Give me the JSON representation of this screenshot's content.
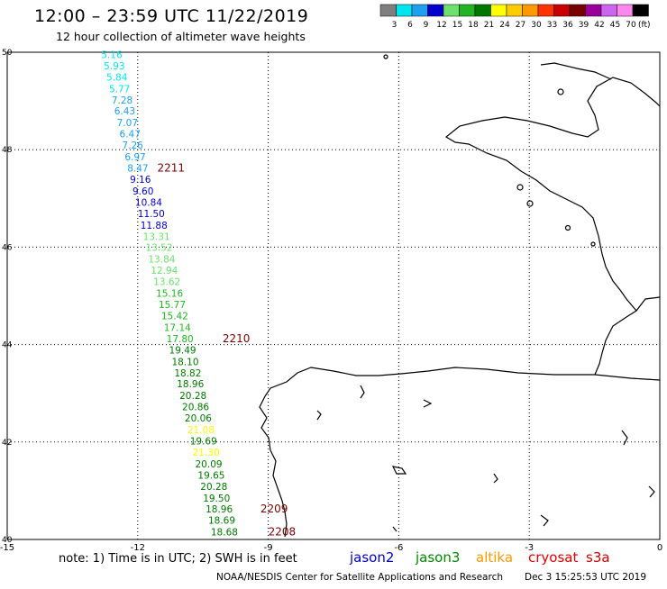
{
  "header": {
    "title": "12:00 – 23:59 UTC 11/22/2019",
    "subtitle": "12 hour collection of altimeter wave heights"
  },
  "scale": {
    "unit": "(ft)",
    "bins": [
      {
        "label": "3",
        "color": "#7f7f7f"
      },
      {
        "label": "6",
        "color": "#00e5ee"
      },
      {
        "label": "9",
        "color": "#1ea0ee"
      },
      {
        "label": "12",
        "color": "#0000cd"
      },
      {
        "label": "15",
        "color": "#6ee06e"
      },
      {
        "label": "18",
        "color": "#22b422"
      },
      {
        "label": "21",
        "color": "#007800"
      },
      {
        "label": "24",
        "color": "#ffff00"
      },
      {
        "label": "27",
        "color": "#ffcc00"
      },
      {
        "label": "30",
        "color": "#ff9900"
      },
      {
        "label": "33",
        "color": "#ff3300"
      },
      {
        "label": "36",
        "color": "#c80000"
      },
      {
        "label": "39",
        "color": "#780000"
      },
      {
        "label": "42",
        "color": "#990099"
      },
      {
        "label": "45",
        "color": "#cc66ee"
      },
      {
        "label": "70",
        "color": "#ff88ee"
      },
      {
        "label": "",
        "color": "#000000"
      }
    ]
  },
  "axes": {
    "x_ticks": [
      "-15",
      "-12",
      "-9",
      "-6",
      "-3",
      "0"
    ],
    "y_ticks": [
      "50",
      "48",
      "46",
      "44",
      "42",
      "40"
    ],
    "lon_range": [
      -15,
      0
    ],
    "lat_range": [
      40,
      50
    ]
  },
  "chart_data": {
    "type": "scatter",
    "series": [
      {
        "mission": "jason3",
        "values": [
          {
            "lat": 49.88,
            "lon": -12.84,
            "swh": 5.16
          },
          {
            "lat": 49.65,
            "lon": -12.78,
            "swh": 5.93
          },
          {
            "lat": 49.42,
            "lon": -12.72,
            "swh": 5.84
          },
          {
            "lat": 49.18,
            "lon": -12.66,
            "swh": 5.77
          },
          {
            "lat": 48.95,
            "lon": -12.6,
            "swh": 7.28
          },
          {
            "lat": 48.72,
            "lon": -12.54,
            "swh": 6.43
          },
          {
            "lat": 48.48,
            "lon": -12.48,
            "swh": 7.07
          },
          {
            "lat": 48.25,
            "lon": -12.42,
            "swh": 6.47
          },
          {
            "lat": 48.02,
            "lon": -12.36,
            "swh": 7.26
          },
          {
            "lat": 47.78,
            "lon": -12.3,
            "swh": 6.97
          },
          {
            "lat": 47.55,
            "lon": -12.24,
            "swh": 8.47
          },
          {
            "lat": 47.32,
            "lon": -12.18,
            "swh": 9.16
          },
          {
            "lat": 47.08,
            "lon": -12.12,
            "swh": 9.6
          },
          {
            "lat": 46.85,
            "lon": -12.06,
            "swh": 10.84
          },
          {
            "lat": 46.62,
            "lon": -12.0,
            "swh": 11.5
          },
          {
            "lat": 46.38,
            "lon": -11.94,
            "swh": 11.88
          },
          {
            "lat": 46.15,
            "lon": -11.88,
            "swh": 13.31
          },
          {
            "lat": 45.92,
            "lon": -11.82,
            "swh": 13.52
          },
          {
            "lat": 45.68,
            "lon": -11.76,
            "swh": 13.84
          },
          {
            "lat": 45.45,
            "lon": -11.7,
            "swh": 12.94
          },
          {
            "lat": 45.22,
            "lon": -11.64,
            "swh": 13.62
          },
          {
            "lat": 44.98,
            "lon": -11.58,
            "swh": 15.16
          },
          {
            "lat": 44.75,
            "lon": -11.52,
            "swh": 15.77
          },
          {
            "lat": 44.52,
            "lon": -11.46,
            "swh": 15.42
          },
          {
            "lat": 44.28,
            "lon": -11.4,
            "swh": 17.14
          },
          {
            "lat": 44.05,
            "lon": -11.34,
            "swh": 17.8
          },
          {
            "lat": 43.82,
            "lon": -11.28,
            "swh": 19.49
          },
          {
            "lat": 43.58,
            "lon": -11.22,
            "swh": 18.1
          },
          {
            "lat": 43.35,
            "lon": -11.16,
            "swh": 18.82
          },
          {
            "lat": 43.12,
            "lon": -11.1,
            "swh": 18.96
          },
          {
            "lat": 42.88,
            "lon": -11.04,
            "swh": 20.28
          },
          {
            "lat": 42.65,
            "lon": -10.98,
            "swh": 20.86
          },
          {
            "lat": 42.42,
            "lon": -10.92,
            "swh": 20.06
          },
          {
            "lat": 42.18,
            "lon": -10.86,
            "swh": 21.08
          },
          {
            "lat": 41.95,
            "lon": -10.8,
            "swh": 19.69
          },
          {
            "lat": 41.72,
            "lon": -10.74,
            "swh": 21.3
          },
          {
            "lat": 41.48,
            "lon": -10.68,
            "swh": 20.09
          },
          {
            "lat": 41.25,
            "lon": -10.62,
            "swh": 19.65
          },
          {
            "lat": 41.02,
            "lon": -10.56,
            "swh": 20.28
          },
          {
            "lat": 40.78,
            "lon": -10.5,
            "swh": 19.5
          },
          {
            "lat": 40.55,
            "lon": -10.44,
            "swh": 18.96
          },
          {
            "lat": 40.32,
            "lon": -10.38,
            "swh": 18.69
          },
          {
            "lat": 40.08,
            "lon": -10.32,
            "swh": 18.68
          }
        ]
      }
    ],
    "passes": [
      {
        "label": "2211",
        "lat": 47.55,
        "lon": -11.55
      },
      {
        "label": "2210",
        "lat": 44.05,
        "lon": -10.05
      },
      {
        "label": "2209",
        "lat": 40.55,
        "lon": -9.18
      },
      {
        "label": "2208",
        "lat": 40.08,
        "lon": -9.0
      }
    ]
  },
  "note": "note:  1) Time is in UTC;  2) SWH is in feet",
  "missions": [
    {
      "name": "jason2",
      "color": "#0000cc"
    },
    {
      "name": "jason3",
      "color": "#008800"
    },
    {
      "name": "altika",
      "color": "#ff9900"
    },
    {
      "name": "cryosat",
      "color": "#dd0000"
    },
    {
      "name": "s3a",
      "color": "#cc0000"
    }
  ],
  "footer": {
    "credit": "NOAA/NESDIS Center for Satellite Applications and Research",
    "timestamp": "Dec  3 15:25:53 UTC 2019"
  }
}
